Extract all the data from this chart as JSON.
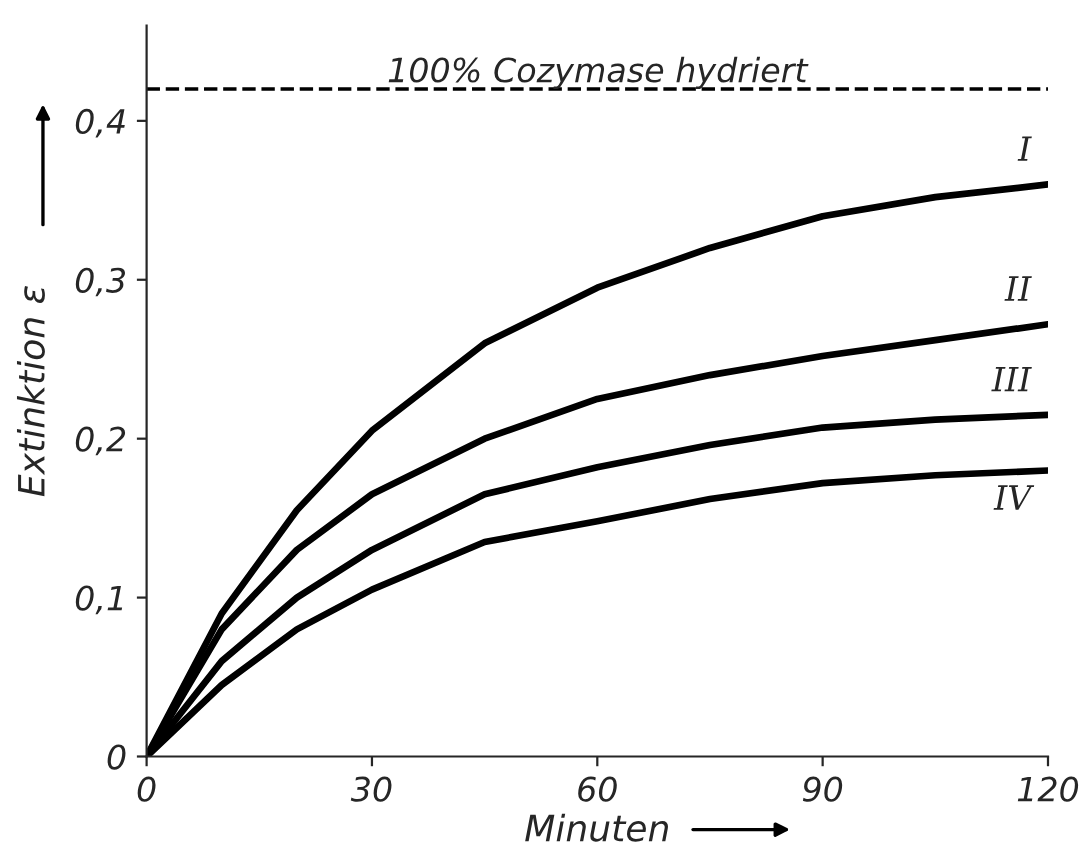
{
  "chart_data": {
    "type": "line",
    "xlabel": "Minuten",
    "ylabel": "Extinktion ε",
    "x": [
      0,
      10,
      20,
      30,
      45,
      60,
      75,
      90,
      105,
      120
    ],
    "series": [
      {
        "name": "I",
        "color": "#000000",
        "values": [
          0,
          0.09,
          0.155,
          0.205,
          0.26,
          0.295,
          0.32,
          0.34,
          0.352,
          0.36
        ]
      },
      {
        "name": "II",
        "color": "#000000",
        "values": [
          0,
          0.08,
          0.13,
          0.165,
          0.2,
          0.225,
          0.24,
          0.252,
          0.262,
          0.272
        ]
      },
      {
        "name": "III",
        "color": "#000000",
        "values": [
          0,
          0.06,
          0.1,
          0.13,
          0.165,
          0.182,
          0.196,
          0.207,
          0.212,
          0.215
        ]
      },
      {
        "name": "IV",
        "color": "#000000",
        "values": [
          0,
          0.045,
          0.08,
          0.105,
          0.135,
          0.148,
          0.162,
          0.172,
          0.177,
          0.18
        ]
      }
    ],
    "xlim": [
      0,
      120
    ],
    "xticks": [
      0,
      30,
      60,
      90,
      120
    ],
    "ylim": [
      0,
      0.46
    ],
    "yticks": [
      {
        "value": 0,
        "label": "0"
      },
      {
        "value": 0.1,
        "label": "0,1"
      },
      {
        "value": 0.2,
        "label": "0,2"
      },
      {
        "value": 0.3,
        "label": "0,3"
      },
      {
        "value": 0.4,
        "label": "0,4"
      }
    ],
    "ref_lines": [
      {
        "axis": "y",
        "value": 0.42,
        "label": "100% Cozymase hydriert",
        "color": "#000000",
        "line_style": "dashed"
      }
    ],
    "grid": false,
    "legend": false,
    "marker": "none",
    "line_style": "solid"
  }
}
